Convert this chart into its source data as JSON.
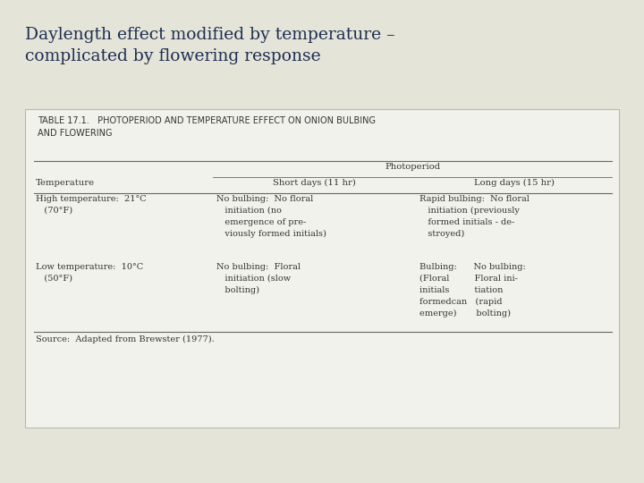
{
  "bg_color": "#e4e4d8",
  "title_text": "Daylength effect modified by temperature –\ncomplicated by flowering response",
  "title_color": "#1e2d52",
  "title_fontsize": 13.5,
  "table_bg": "#f2f2ec",
  "table_border_color": "#bbbbaa",
  "table_title": "TABLE 17.1.   PHOTOPERIOD AND TEMPERATURE EFFECT ON ONION BULBING\nAND FLOWERING",
  "col_header_main": "Photoperiod",
  "col_headers": [
    "Temperature",
    "Short days (11 hr)",
    "Long days (15 hr)"
  ],
  "row1_temp": "High temperature:  21°C\n   (70°F)",
  "row1_short": "No bulbing:  No floral\n   initiation (no\n   emergence of pre-\n   viously formed initials)",
  "row1_long": "Rapid bulbing:  No floral\n   initiation (previously\n   formed initials - de-\n   stroyed)",
  "row2_temp": "Low temperature:  10°C\n   (50°F)",
  "row2_short": "No bulbing:  Floral\n   initiation (slow\n   bolting)",
  "row2_long": "Bulbing:      No bulbing:\n(Floral         Floral ini-\ninitials         tiation\nformedcan   (rapid\nemerge)       bolting)",
  "source": "Source:  Adapted from Brewster (1977).",
  "text_color": "#333333",
  "line_color": "#666666",
  "table_title_fontsize": 7.0,
  "body_fontsize": 7.0,
  "header_fontsize": 7.2
}
